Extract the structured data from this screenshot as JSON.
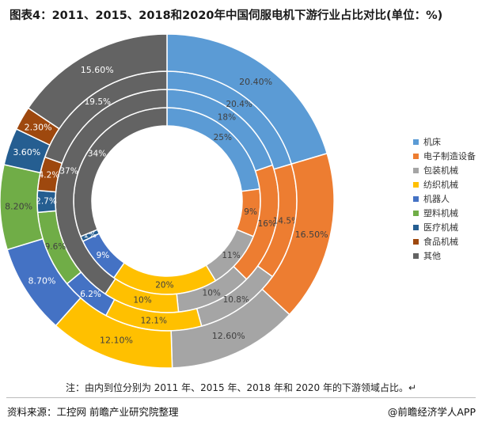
{
  "title": "图表4：2011、2015、2018和2020年中国伺服电机下游行业占比对比(单位：%)",
  "note": "注：由内到位分别为 2011 年、2015 年、2018 年和 2020 年的下游领域占比。↵",
  "source": "资料来源：工控网 前瞻产业研究院整理",
  "credit": "@前瞻经济学人APP",
  "chart_data": {
    "type": "pie",
    "subtype": "multi-ring donut",
    "title": "图表4：2011、2015、2018和2020年中国伺服电机下游行业占比对比(单位：%)",
    "categories": [
      "机床",
      "电子制造设备",
      "包装机械",
      "纺织机械",
      "机器人",
      "塑料机械",
      "医疗机械",
      "食品机械",
      "其他"
    ],
    "colors": [
      "#5b9bd5",
      "#ed7d31",
      "#a5a5a5",
      "#ffc000",
      "#4472c4",
      "#70ad47",
      "#255e91",
      "#9e480e",
      "#636363"
    ],
    "rings_order": "inner to outer",
    "series": [
      {
        "name": "2011",
        "values": [
          25,
          9,
          11,
          20,
          9,
          0,
          1,
          0,
          34
        ],
        "labels": [
          "25%",
          "9%",
          "11%",
          "20%",
          "9%",
          "",
          "1%",
          "",
          "34%"
        ]
      },
      {
        "name": "2015",
        "values": [
          18,
          16,
          10,
          10,
          0,
          0,
          0,
          0,
          37
        ],
        "labels": [
          "18%",
          "16%",
          "10%",
          "10%",
          "",
          "",
          "",
          "",
          "37%"
        ]
      },
      {
        "name": "2018",
        "values": [
          20.4,
          14.5,
          10.8,
          12.1,
          6.2,
          9.6,
          2.7,
          4.2,
          19.5
        ],
        "labels": [
          "20.4%",
          "14.5%",
          "10.8%",
          "12.1%",
          "6.2%",
          "9.6%",
          "2.7%",
          "4.2%",
          "19.5%"
        ]
      },
      {
        "name": "2020",
        "values": [
          20.4,
          16.5,
          12.6,
          12.1,
          8.7,
          8.2,
          3.6,
          2.3,
          15.6
        ],
        "labels": [
          "20.40%",
          "16.50%",
          "12.60%",
          "12.10%",
          "8.70%",
          "8.20%",
          "3.60%",
          "2.30%",
          "15.60%"
        ]
      }
    ],
    "legend_position": "right"
  }
}
